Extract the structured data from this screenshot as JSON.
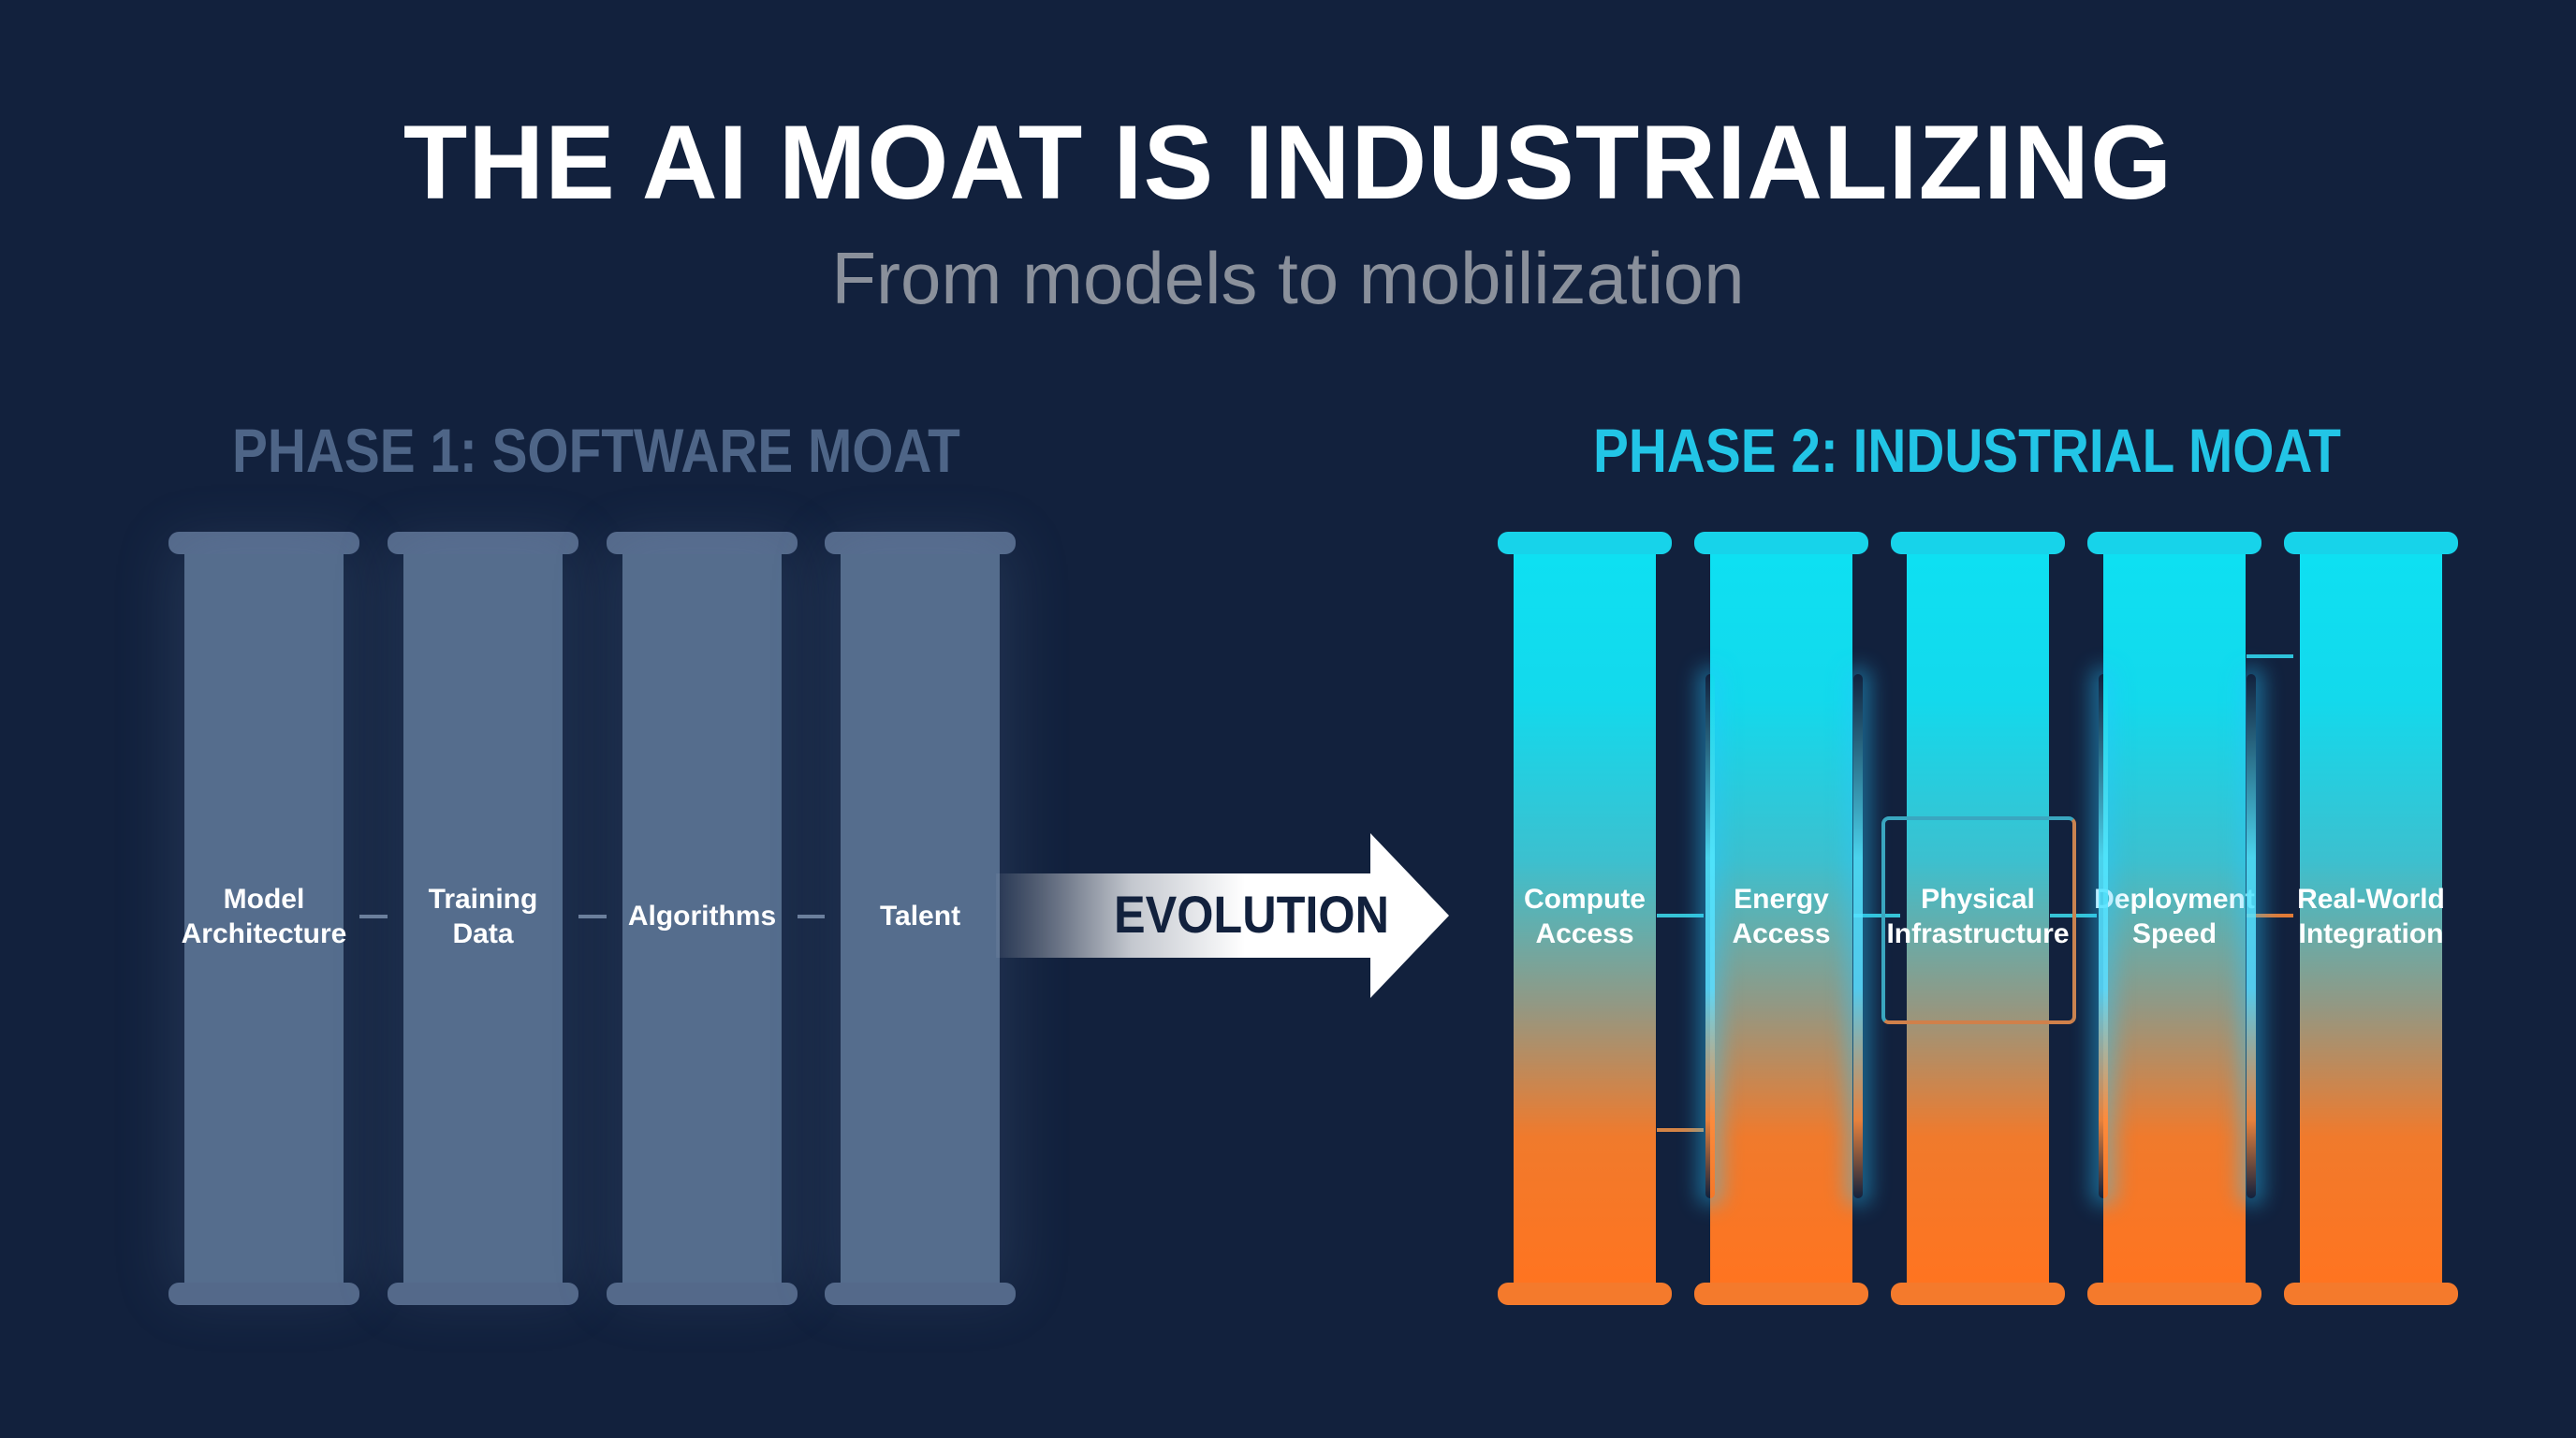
{
  "title": "THE AI MOAT IS INDUSTRIALIZING",
  "subtitle": "From models to mobilization",
  "phase1": {
    "heading": "PHASE 1: SOFTWARE MOAT",
    "pillars": [
      {
        "line1": "Model",
        "line2": "Architecture"
      },
      {
        "line1": "Training",
        "line2": "Data"
      },
      {
        "line1": "Algorithms",
        "line2": ""
      },
      {
        "line1": "Talent",
        "line2": ""
      }
    ]
  },
  "evolution": {
    "label": "EVOLUTION"
  },
  "phase2": {
    "heading": "PHASE 2: INDUSTRIAL MOAT",
    "pillars": [
      {
        "line1": "Compute",
        "line2": "Access"
      },
      {
        "line1": "Energy",
        "line2": "Access"
      },
      {
        "line1": "Physical",
        "line2": "Infrastructure"
      },
      {
        "line1": "Deployment",
        "line2": "Speed"
      },
      {
        "line1": "Real-World",
        "line2": "Integration"
      }
    ]
  },
  "colors": {
    "background": "#12213d",
    "phase1_pillar": "#556d8d",
    "phase2_top": "#0ee0f2",
    "phase2_bottom": "#ff7420",
    "phase1_heading": "#4e6587",
    "phase2_heading": "#22c5e6"
  }
}
